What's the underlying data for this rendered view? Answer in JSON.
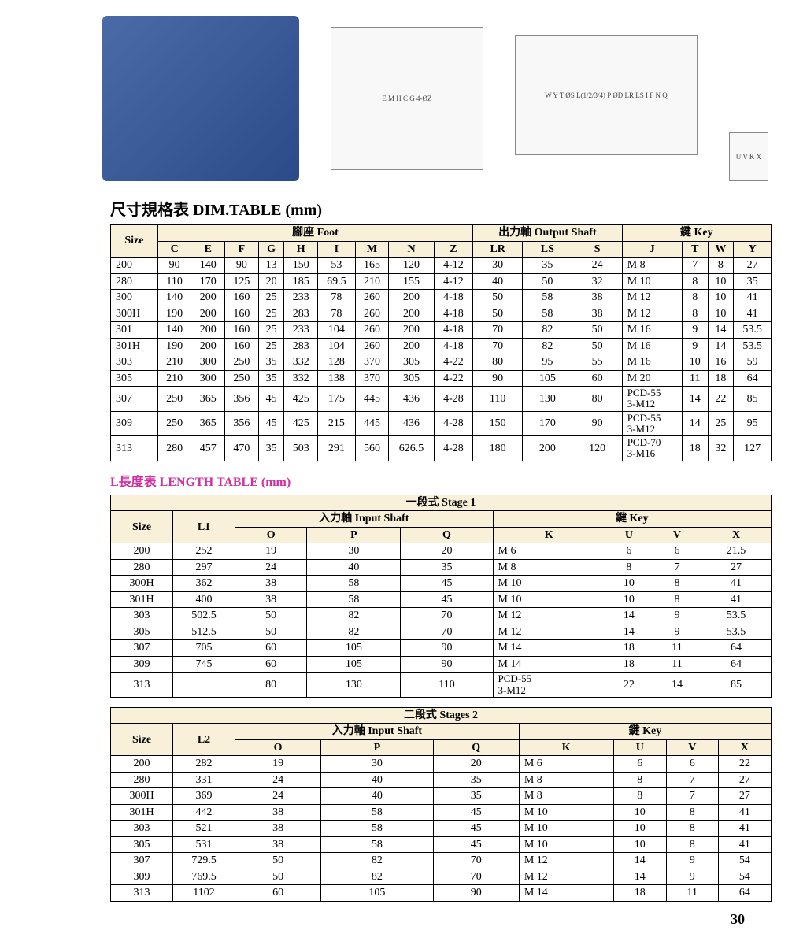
{
  "colors": {
    "header_bg": "#f8f0d8",
    "border": "#000000",
    "magenta": "#d030a0",
    "text": "#000000",
    "page_bg": "#ffffff"
  },
  "typography": {
    "body_fontsize": 14,
    "title_fontsize": 20,
    "subtitle_fontsize": 16,
    "font_family": "Times New Roman"
  },
  "figures": {
    "photo_label": "product-photo",
    "diagram1_label": "foot-dimension-diagram",
    "diagram2_label": "side-dimension-diagram",
    "diagram3_label": "key-detail-diagram"
  },
  "dim_table": {
    "title": "尺寸規格表   DIM.TABLE (mm)",
    "size_label": "Size",
    "groups": [
      {
        "label": "腳座  Foot",
        "span": 9
      },
      {
        "label": "出力軸 Output Shaft",
        "span": 3
      },
      {
        "label": "鍵  Key",
        "span": 4
      }
    ],
    "columns": [
      "C",
      "E",
      "F",
      "G",
      "H",
      "I",
      "M",
      "N",
      "Z",
      "LR",
      "LS",
      "S",
      "J",
      "T",
      "W",
      "Y"
    ],
    "rows": [
      [
        "200",
        "90",
        "140",
        "90",
        "13",
        "150",
        "53",
        "165",
        "120",
        "4-12",
        "30",
        "35",
        "24",
        "M 8",
        "7",
        "8",
        "27"
      ],
      [
        "280",
        "110",
        "170",
        "125",
        "20",
        "185",
        "69.5",
        "210",
        "155",
        "4-12",
        "40",
        "50",
        "32",
        "M 10",
        "8",
        "10",
        "35"
      ],
      [
        "300",
        "140",
        "200",
        "160",
        "25",
        "233",
        "78",
        "260",
        "200",
        "4-18",
        "50",
        "58",
        "38",
        "M 12",
        "8",
        "10",
        "41"
      ],
      [
        "300H",
        "190",
        "200",
        "160",
        "25",
        "283",
        "78",
        "260",
        "200",
        "4-18",
        "50",
        "58",
        "38",
        "M 12",
        "8",
        "10",
        "41"
      ],
      [
        "301",
        "140",
        "200",
        "160",
        "25",
        "233",
        "104",
        "260",
        "200",
        "4-18",
        "70",
        "82",
        "50",
        "M 16",
        "9",
        "14",
        "53.5"
      ],
      [
        "301H",
        "190",
        "200",
        "160",
        "25",
        "283",
        "104",
        "260",
        "200",
        "4-18",
        "70",
        "82",
        "50",
        "M 16",
        "9",
        "14",
        "53.5"
      ],
      [
        "303",
        "210",
        "300",
        "250",
        "35",
        "332",
        "128",
        "370",
        "305",
        "4-22",
        "80",
        "95",
        "55",
        "M 16",
        "10",
        "16",
        "59"
      ],
      [
        "305",
        "210",
        "300",
        "250",
        "35",
        "332",
        "138",
        "370",
        "305",
        "4-22",
        "90",
        "105",
        "60",
        "M 20",
        "11",
        "18",
        "64"
      ],
      [
        "307",
        "250",
        "365",
        "356",
        "45",
        "425",
        "175",
        "445",
        "436",
        "4-28",
        "110",
        "130",
        "80",
        "PCD-55\n3-M12",
        "14",
        "22",
        "85"
      ],
      [
        "309",
        "250",
        "365",
        "356",
        "45",
        "425",
        "215",
        "445",
        "436",
        "4-28",
        "150",
        "170",
        "90",
        "PCD-55\n3-M12",
        "14",
        "25",
        "95"
      ],
      [
        "313",
        "280",
        "457",
        "470",
        "35",
        "503",
        "291",
        "560",
        "626.5",
        "4-28",
        "180",
        "200",
        "120",
        "PCD-70\n3-M16",
        "18",
        "32",
        "127"
      ]
    ]
  },
  "length_title": "L長度表   LENGTH TABLE  (mm)",
  "stage1": {
    "banner": "一段式     Stage 1",
    "size_label": "Size",
    "l_label": "L1",
    "groups": [
      {
        "label": "入力軸   Input Shaft",
        "span": 3
      },
      {
        "label": "鍵  Key",
        "span": 4
      }
    ],
    "columns": [
      "O",
      "P",
      "Q",
      "K",
      "U",
      "V",
      "X"
    ],
    "rows": [
      [
        "200",
        "252",
        "19",
        "30",
        "20",
        "M 6",
        "6",
        "6",
        "21.5"
      ],
      [
        "280",
        "297",
        "24",
        "40",
        "35",
        "M 8",
        "8",
        "7",
        "27"
      ],
      [
        "300H",
        "362",
        "38",
        "58",
        "45",
        "M 10",
        "10",
        "8",
        "41"
      ],
      [
        "301H",
        "400",
        "38",
        "58",
        "45",
        "M 10",
        "10",
        "8",
        "41"
      ],
      [
        "303",
        "502.5",
        "50",
        "82",
        "70",
        "M 12",
        "14",
        "9",
        "53.5"
      ],
      [
        "305",
        "512.5",
        "50",
        "82",
        "70",
        "M 12",
        "14",
        "9",
        "53.5"
      ],
      [
        "307",
        "705",
        "60",
        "105",
        "90",
        "M 14",
        "18",
        "11",
        "64"
      ],
      [
        "309",
        "745",
        "60",
        "105",
        "90",
        "M 14",
        "18",
        "11",
        "64"
      ],
      [
        "313",
        "",
        "80",
        "130",
        "110",
        "PCD-55\n3-M12",
        "22",
        "14",
        "85"
      ]
    ]
  },
  "stage2": {
    "banner": "二段式     Stages 2",
    "size_label": "Size",
    "l_label": "L2",
    "groups": [
      {
        "label": "入力軸   Input Shaft",
        "span": 3
      },
      {
        "label": "鍵  Key",
        "span": 4
      }
    ],
    "columns": [
      "O",
      "P",
      "Q",
      "K",
      "U",
      "V",
      "X"
    ],
    "rows": [
      [
        "200",
        "282",
        "19",
        "30",
        "20",
        "M 6",
        "6",
        "6",
        "22"
      ],
      [
        "280",
        "331",
        "24",
        "40",
        "35",
        "M 8",
        "8",
        "7",
        "27"
      ],
      [
        "300H",
        "369",
        "24",
        "40",
        "35",
        "M 8",
        "8",
        "7",
        "27"
      ],
      [
        "301H",
        "442",
        "38",
        "58",
        "45",
        "M 10",
        "10",
        "8",
        "41"
      ],
      [
        "303",
        "521",
        "38",
        "58",
        "45",
        "M 10",
        "10",
        "8",
        "41"
      ],
      [
        "305",
        "531",
        "38",
        "58",
        "45",
        "M 10",
        "10",
        "8",
        "41"
      ],
      [
        "307",
        "729.5",
        "50",
        "82",
        "70",
        "M 12",
        "14",
        "9",
        "54"
      ],
      [
        "309",
        "769.5",
        "50",
        "82",
        "70",
        "M 12",
        "14",
        "9",
        "54"
      ],
      [
        "313",
        "1102",
        "60",
        "105",
        "90",
        "M 14",
        "18",
        "11",
        "64"
      ]
    ]
  },
  "page_number": "30"
}
